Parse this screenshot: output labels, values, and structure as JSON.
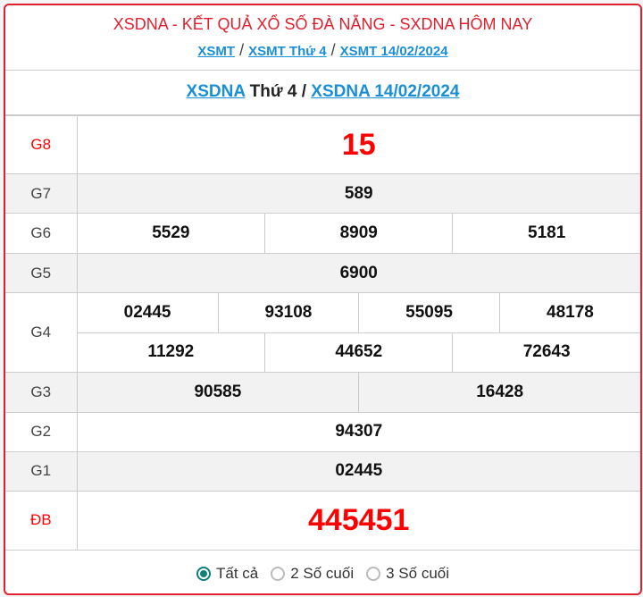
{
  "header": {
    "title": "XSDNA - KẾT QUẢ XỔ SỐ ĐÀ NẴNG - SXDNA HÔM NAY",
    "links": [
      "XSMT",
      "XSMT Thứ 4",
      "XSMT 14/02/2024"
    ],
    "separator": "/"
  },
  "subheader": {
    "link1": "XSDNA",
    "text": "Thứ 4 /",
    "link2": "XSDNA 14/02/2024"
  },
  "prizes": {
    "g8": {
      "label": "G8",
      "values": [
        "15"
      ]
    },
    "g7": {
      "label": "G7",
      "values": [
        "589"
      ]
    },
    "g6": {
      "label": "G6",
      "values": [
        "5529",
        "8909",
        "5181"
      ]
    },
    "g5": {
      "label": "G5",
      "values": [
        "6900"
      ]
    },
    "g4": {
      "label": "G4",
      "values": [
        "02445",
        "93108",
        "55095",
        "48178",
        "11292",
        "44652",
        "72643"
      ]
    },
    "g3": {
      "label": "G3",
      "values": [
        "90585",
        "16428"
      ]
    },
    "g2": {
      "label": "G2",
      "values": [
        "94307"
      ]
    },
    "g1": {
      "label": "G1",
      "values": [
        "02445"
      ]
    },
    "db": {
      "label": "ĐB",
      "values": [
        "445451"
      ]
    }
  },
  "filter": {
    "options": [
      "Tất cả",
      "2 Số cuối",
      "3 Số cuối"
    ],
    "selected": "Tất cả"
  },
  "colors": {
    "accent": "#e0202e",
    "link": "#1a8fd6",
    "prize_red": "#ff0000",
    "radio": "#11807a"
  }
}
